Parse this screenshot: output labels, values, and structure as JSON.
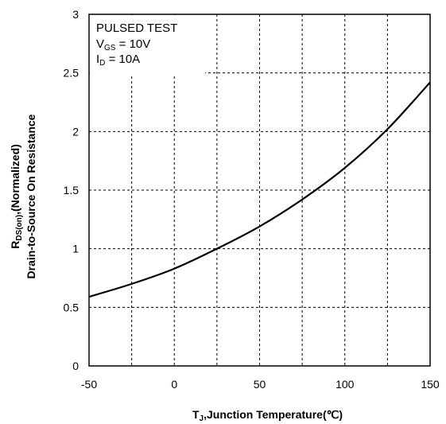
{
  "chart_data": {
    "type": "line",
    "title": "",
    "xlabel": {
      "main": "T",
      "sub": "J",
      "rest": ",Junction Temperature(℃)"
    },
    "ylabel": {
      "line1_main": "R",
      "line1_sub": "DS(on)",
      "line1_rest": ",(Normalized)",
      "line2": "Drain-to-Source On Resistance"
    },
    "xlim": [
      -50,
      150
    ],
    "ylim": [
      0,
      3
    ],
    "xticks": [
      "-50",
      "0",
      "50",
      "100",
      "150"
    ],
    "yticks": [
      "0",
      "0.5",
      "1",
      "1.5",
      "2",
      "2.5",
      "3"
    ],
    "x_gridlines": [
      -25,
      0,
      25,
      50,
      75,
      100,
      125
    ],
    "y_gridlines": [
      0.5,
      1,
      1.5,
      2,
      2.5
    ],
    "grid": true,
    "annotation": {
      "line1": "PULSED TEST",
      "line2_main": "V",
      "line2_sub": "GS",
      "line2_rest": " = 10V",
      "line3_main": "I",
      "line3_sub": "D",
      "line3_rest": " = 10A"
    },
    "series": [
      {
        "x": [
          -50,
          -25,
          0,
          25,
          50,
          75,
          100,
          125,
          150
        ],
        "y": [
          0.59,
          0.7,
          0.83,
          1.0,
          1.19,
          1.42,
          1.69,
          2.02,
          2.42
        ]
      }
    ]
  }
}
